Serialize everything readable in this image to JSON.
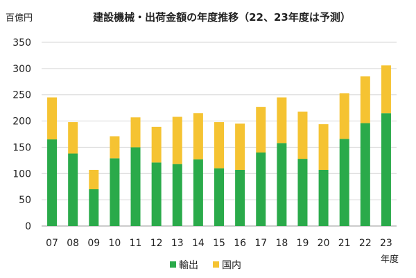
{
  "chart_data": {
    "type": "bar",
    "stacked": true,
    "title": "建設機械・出荷金額の年度推移（22、23年度は予測）",
    "ylabel": "百億円",
    "xlabel": "年度",
    "ylim": [
      0,
      350
    ],
    "yticks": [
      0,
      50,
      100,
      150,
      200,
      250,
      300,
      350
    ],
    "grid": true,
    "legend_position": "bottom",
    "categories": [
      "07",
      "08",
      "09",
      "10",
      "11",
      "12",
      "13",
      "14",
      "15",
      "16",
      "17",
      "18",
      "19",
      "20",
      "21",
      "22",
      "23"
    ],
    "series": [
      {
        "name": "輸出",
        "color": "#2aaa4a",
        "values": [
          165,
          138,
          70,
          129,
          150,
          121,
          118,
          127,
          110,
          107,
          140,
          158,
          128,
          107,
          166,
          196,
          215
        ]
      },
      {
        "name": "国内",
        "color": "#f5c332",
        "values": [
          80,
          60,
          37,
          42,
          57,
          68,
          90,
          88,
          88,
          88,
          87,
          87,
          90,
          87,
          87,
          89,
          91
        ]
      }
    ]
  }
}
